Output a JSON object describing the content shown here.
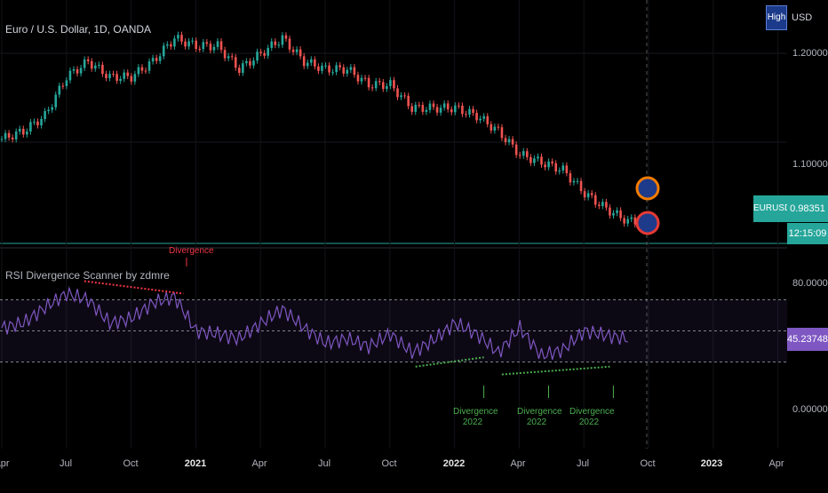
{
  "header": {
    "symbol_title": "Euro / U.S. Dollar, 1D, OANDA",
    "currency": "USD",
    "scale_button": "High"
  },
  "indicator": {
    "title": "RSI Divergence Scanner by zdmre"
  },
  "badges": {
    "symbol": "EURUSD",
    "price": "0.98351",
    "countdown": "12:15:09",
    "rsi_value": "45.23748"
  },
  "annotations": {
    "bearish": "Divergence",
    "bullish": [
      {
        "label": "Divergence",
        "year": "2022",
        "x_date": "2022-02"
      },
      {
        "label": "Divergence",
        "year": "2022",
        "x_date": "2022-05"
      },
      {
        "label": "Divergence",
        "year": "2022",
        "x_date": "2022-08"
      }
    ]
  },
  "colors": {
    "up": "#26a69a",
    "down": "#ef5350",
    "rsi": "#7e57c2",
    "bear_div": "#f23645",
    "bull_div": "#4caf50",
    "badge": "#26a69a"
  },
  "chart_data": [
    {
      "type": "line",
      "title": "Euro / U.S. Dollar, 1D, OANDA",
      "style": "candlestick",
      "x_ticks": [
        "Apr",
        "Jul",
        "Oct",
        "2021",
        "Apr",
        "Jul",
        "Oct",
        "2022",
        "Apr",
        "Jul",
        "Oct",
        "2023",
        "Apr"
      ],
      "y_ticks": [
        "1.20000",
        "1.10000"
      ],
      "ylim": [
        0.96,
        1.26
      ],
      "x": [
        "2020-04",
        "2020-05",
        "2020-06",
        "2020-07",
        "2020-08",
        "2020-09",
        "2020-10",
        "2020-11",
        "2020-12",
        "2021-01",
        "2021-02",
        "2021-03",
        "2021-04",
        "2021-05",
        "2021-06",
        "2021-07",
        "2021-08",
        "2021-09",
        "2021-10",
        "2021-11",
        "2021-12",
        "2022-01",
        "2022-02",
        "2022-03",
        "2022-04",
        "2022-05",
        "2022-06",
        "2022-07",
        "2022-08",
        "2022-09"
      ],
      "values": [
        1.09,
        1.1,
        1.12,
        1.17,
        1.19,
        1.17,
        1.17,
        1.19,
        1.22,
        1.21,
        1.21,
        1.18,
        1.2,
        1.22,
        1.19,
        1.18,
        1.18,
        1.16,
        1.16,
        1.13,
        1.13,
        1.13,
        1.12,
        1.1,
        1.07,
        1.06,
        1.05,
        1.02,
        1.0,
        0.984
      ],
      "last_price": "0.98351"
    },
    {
      "type": "line",
      "title": "RSI Divergence Scanner by zdmre",
      "y_ticks": [
        "80.00000",
        "0.00000"
      ],
      "ylim": [
        0,
        100
      ],
      "bands": [
        70,
        50,
        30
      ],
      "x": [
        "2020-04",
        "2020-05",
        "2020-06",
        "2020-07",
        "2020-08",
        "2020-09",
        "2020-10",
        "2020-11",
        "2020-12",
        "2021-01",
        "2021-02",
        "2021-03",
        "2021-04",
        "2021-05",
        "2021-06",
        "2021-07",
        "2021-08",
        "2021-09",
        "2021-10",
        "2021-11",
        "2021-12",
        "2022-01",
        "2022-02",
        "2022-03",
        "2022-04",
        "2022-05",
        "2022-06",
        "2022-07",
        "2022-08",
        "2022-09"
      ],
      "values": [
        52,
        55,
        65,
        74,
        70,
        55,
        58,
        68,
        72,
        50,
        48,
        45,
        55,
        64,
        52,
        42,
        45,
        40,
        48,
        36,
        44,
        55,
        48,
        36,
        52,
        34,
        38,
        50,
        47,
        45
      ],
      "last_value": "45.23748"
    }
  ]
}
